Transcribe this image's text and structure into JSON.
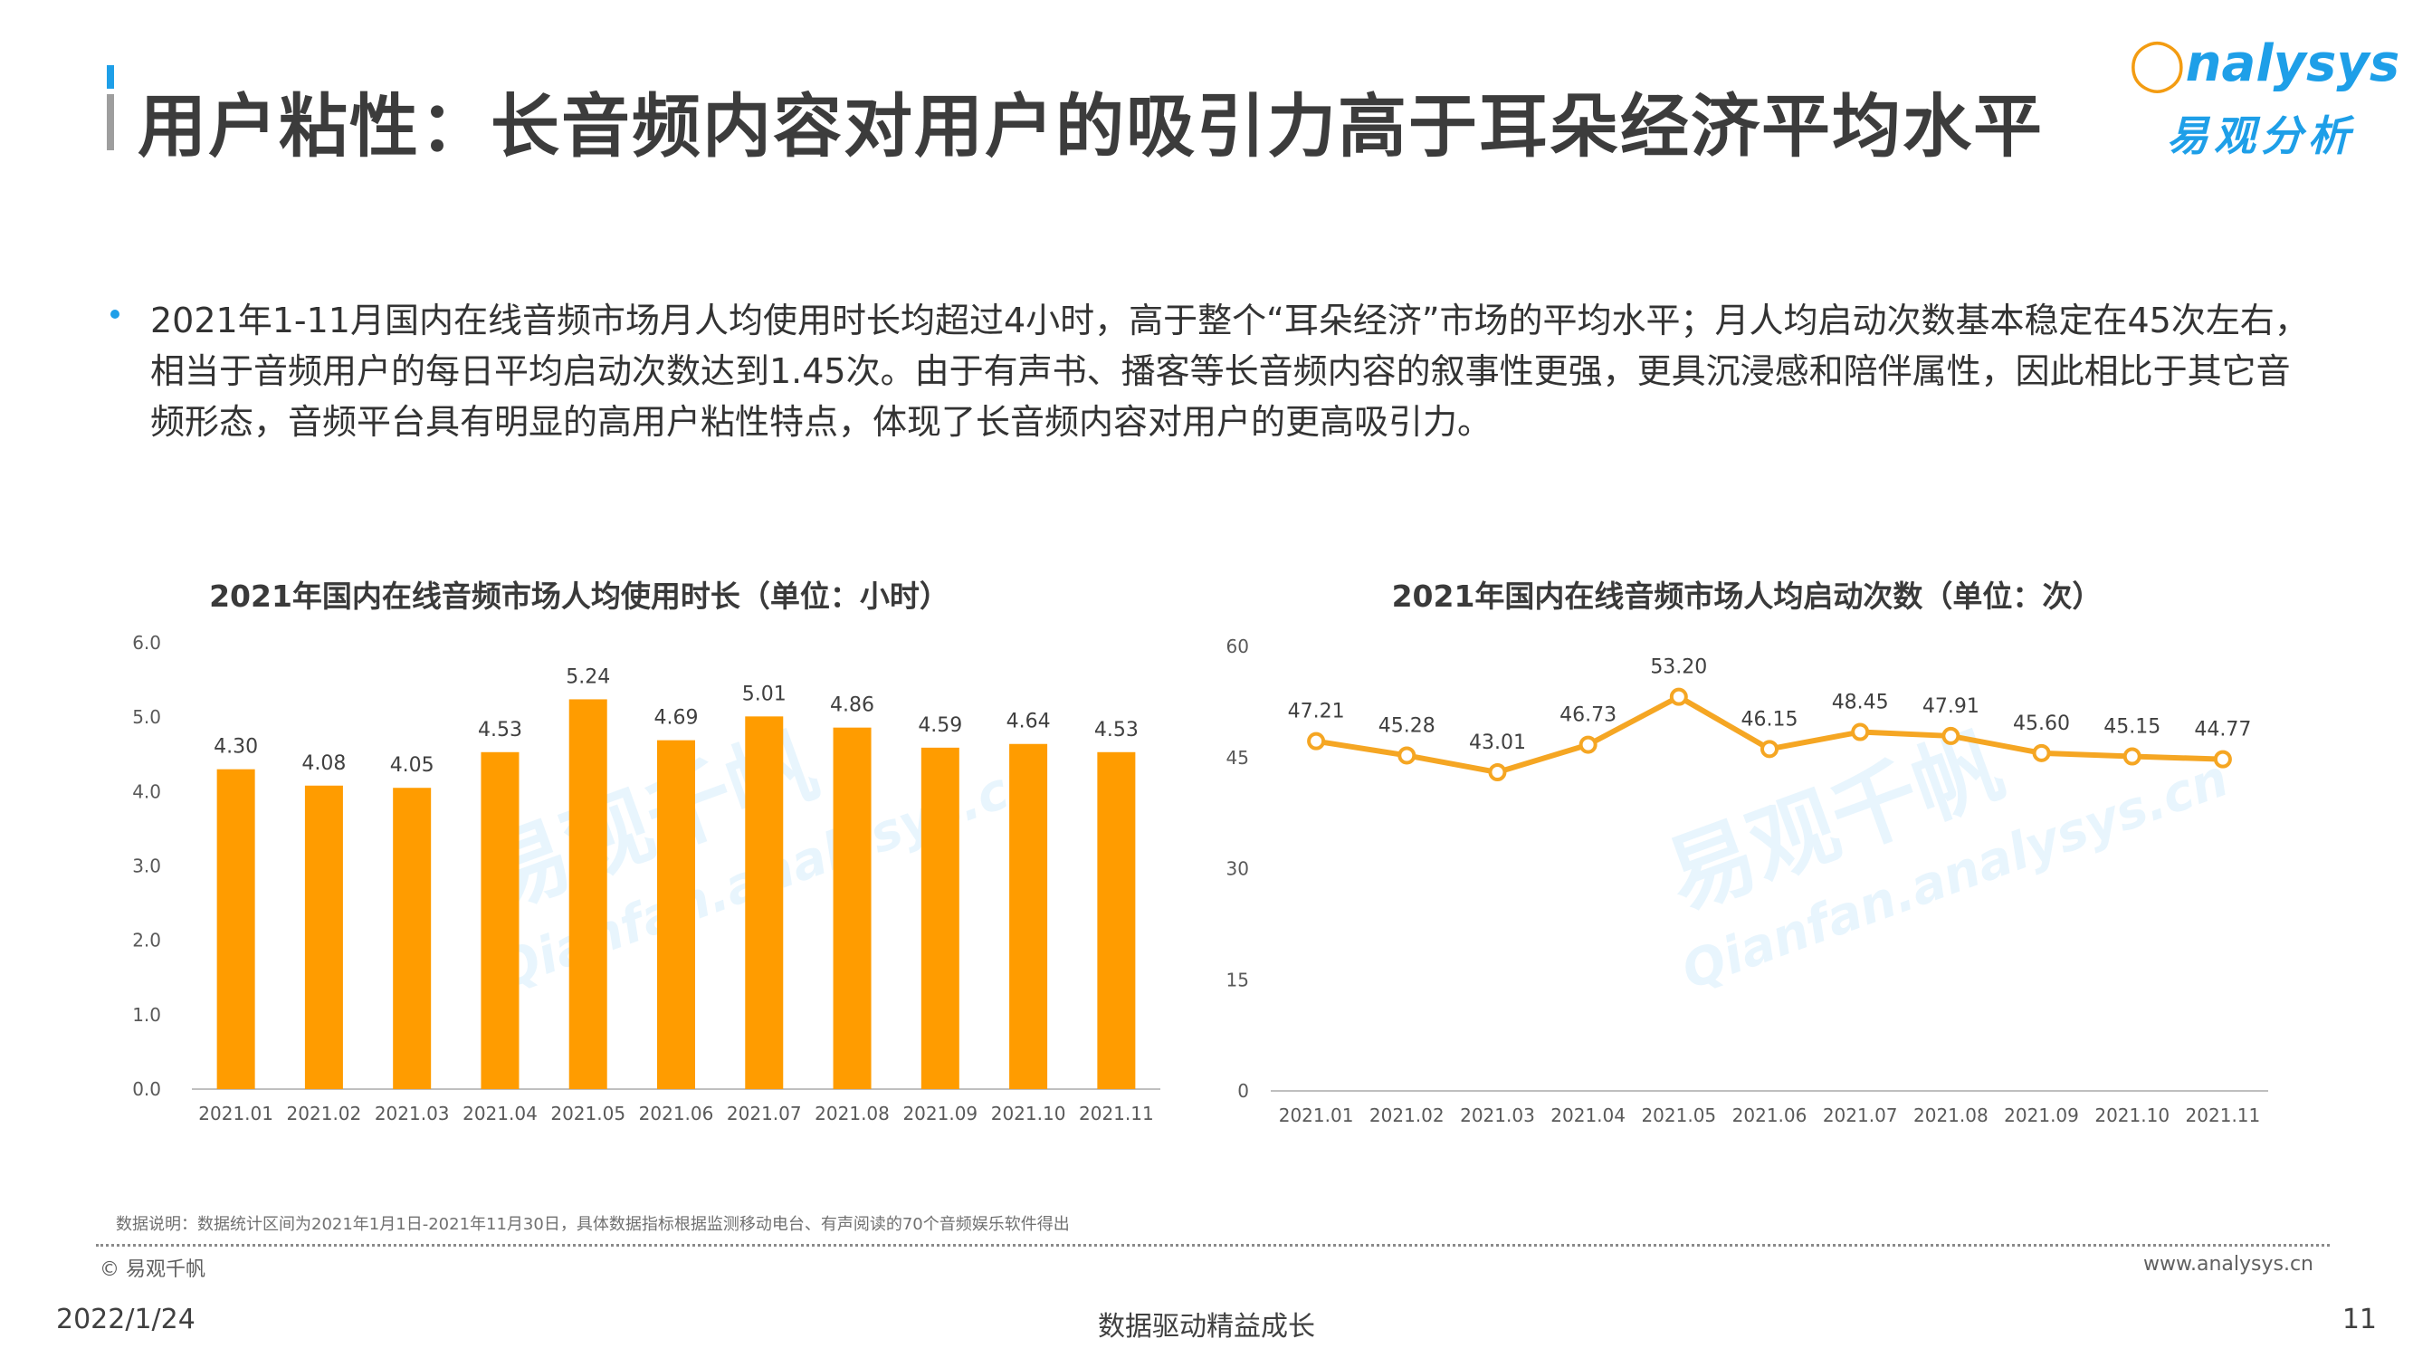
{
  "header": {
    "title": "用户粘性：长音频内容对用户的吸引力高于耳朵经济平均水平",
    "logo_en_prefix": "◯",
    "logo_en": "nalysys",
    "logo_cn": "易观分析"
  },
  "summary": {
    "text": "2021年1-11月国内在线音频市场月人均使用时长均超过4小时，高于整个“耳朵经济”市场的平均水平；月人均启动次数基本稳定在45次左右，相当于音频用户的每日平均启动次数达到1.45次。由于有声书、播客等长音频内容的叙事性更强，更具沉浸感和陪伴属性，因此相比于其它音频形态，音频平台具有明显的高用户粘性特点，体现了长音频内容对用户的更高吸引力。"
  },
  "watermark": {
    "cn": "易观千帆",
    "en": "Qianfan.analysys.cn"
  },
  "chart_data": [
    {
      "type": "bar",
      "title": "2021年国内在线音频市场人均使用时长（单位：小时）",
      "categories": [
        "2021.01",
        "2021.02",
        "2021.03",
        "2021.04",
        "2021.05",
        "2021.06",
        "2021.07",
        "2021.08",
        "2021.09",
        "2021.10",
        "2021.11"
      ],
      "values": [
        4.3,
        4.08,
        4.05,
        4.53,
        5.24,
        4.69,
        5.01,
        4.86,
        4.59,
        4.64,
        4.53
      ],
      "value_labels": [
        "4.30",
        "4.08",
        "4.05",
        "4.53",
        "5.24",
        "4.69",
        "5.01",
        "4.86",
        "4.59",
        "4.64",
        "4.53"
      ],
      "ylim": [
        0,
        6
      ],
      "yticks": [
        "0.0",
        "1.0",
        "2.0",
        "3.0",
        "4.0",
        "5.0",
        "6.0"
      ],
      "color": "#ff9c00",
      "grid": false,
      "legend": "none"
    },
    {
      "type": "line",
      "title": "2021年国内在线音频市场人均启动次数（单位：次）",
      "categories": [
        "2021.01",
        "2021.02",
        "2021.03",
        "2021.04",
        "2021.05",
        "2021.06",
        "2021.07",
        "2021.08",
        "2021.09",
        "2021.10",
        "2021.11"
      ],
      "values": [
        47.21,
        45.28,
        43.01,
        46.73,
        53.2,
        46.15,
        48.45,
        47.91,
        45.6,
        45.15,
        44.77
      ],
      "value_labels": [
        "47.21",
        "45.28",
        "43.01",
        "46.73",
        "53.20",
        "46.15",
        "48.45",
        "47.91",
        "45.60",
        "45.15",
        "44.77"
      ],
      "ylim": [
        0,
        60
      ],
      "yticks": [
        "0",
        "15",
        "30",
        "45",
        "60"
      ],
      "color": "#f5a623",
      "grid": false,
      "legend": "none"
    }
  ],
  "footer": {
    "note": "数据说明：数据统计区间为2021年1月1日-2021年11月30日，具体数据指标根据监测移动电台、有声阅读的70个音频娱乐软件得出",
    "copyright": "© 易观千帆",
    "website": "www.analysys.cn",
    "date": "2022/1/24",
    "slogan": "数据驱动精益成长",
    "page": "11"
  }
}
